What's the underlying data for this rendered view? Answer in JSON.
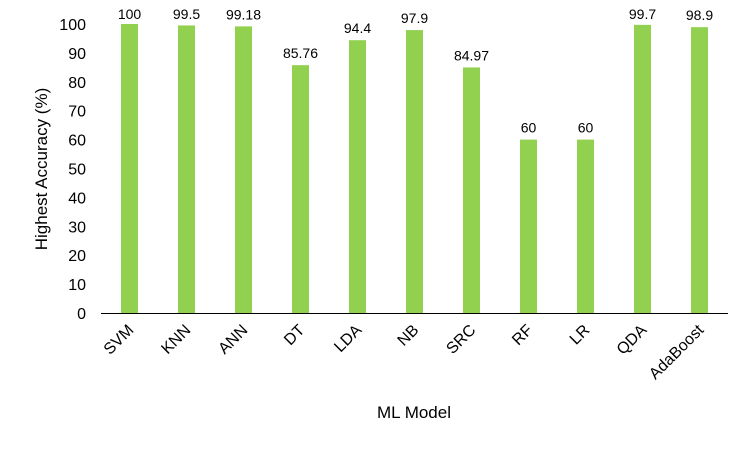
{
  "chart_data": {
    "type": "bar",
    "categories": [
      "SVM",
      "KNN",
      "ANN",
      "DT",
      "LDA",
      "NB",
      "SRC",
      "RF",
      "LR",
      "QDA",
      "AdaBoost"
    ],
    "values": [
      100,
      99.5,
      99.18,
      85.76,
      94.4,
      97.9,
      84.97,
      60,
      60,
      99.7,
      98.9
    ],
    "data_labels": [
      "100",
      "99.5",
      "99.18",
      "85.76",
      "94.4",
      "97.9",
      "84.97",
      "60",
      "60",
      "99.7",
      "98.9"
    ],
    "title": "",
    "xlabel": "ML Model",
    "ylabel": "Highest Accuracy (%)",
    "ylim": [
      0,
      100
    ],
    "yticks": [
      "0",
      "10",
      "20",
      "30",
      "40",
      "50",
      "60",
      "70",
      "80",
      "90",
      "100"
    ],
    "grid": false,
    "legend": "none",
    "bar_color": "#92D050"
  }
}
